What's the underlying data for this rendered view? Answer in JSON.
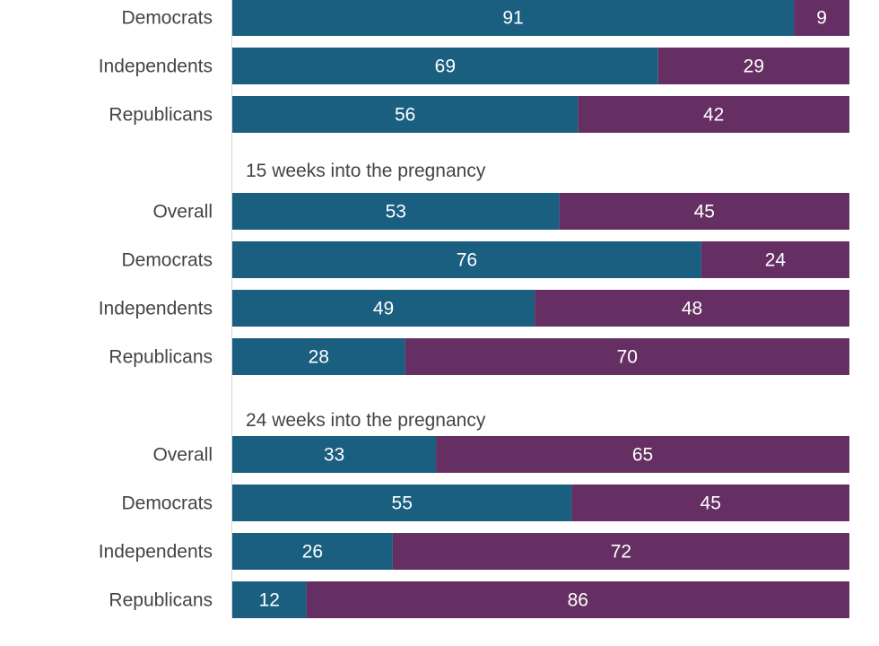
{
  "chart_data": {
    "type": "bar",
    "orientation": "horizontal",
    "stacked": true,
    "xlim": [
      0,
      100
    ],
    "colors": {
      "first": "#1a5e80",
      "second": "#662f63"
    },
    "groups": [
      {
        "title": "",
        "rows": [
          {
            "label": "Democrats",
            "values": [
              91,
              9
            ]
          },
          {
            "label": "Independents",
            "values": [
              69,
              29
            ]
          },
          {
            "label": "Republicans",
            "values": [
              56,
              42
            ]
          }
        ]
      },
      {
        "title": "15 weeks into the pregnancy",
        "rows": [
          {
            "label": "Overall",
            "values": [
              53,
              45
            ]
          },
          {
            "label": "Democrats",
            "values": [
              76,
              24
            ]
          },
          {
            "label": "Independents",
            "values": [
              49,
              48
            ]
          },
          {
            "label": "Republicans",
            "values": [
              28,
              70
            ]
          }
        ]
      },
      {
        "title": "24 weeks into the pregnancy",
        "rows": [
          {
            "label": "Overall",
            "values": [
              33,
              65
            ]
          },
          {
            "label": "Democrats",
            "values": [
              55,
              45
            ]
          },
          {
            "label": "Independents",
            "values": [
              26,
              72
            ]
          },
          {
            "label": "Republicans",
            "values": [
              12,
              86
            ]
          }
        ]
      }
    ]
  }
}
